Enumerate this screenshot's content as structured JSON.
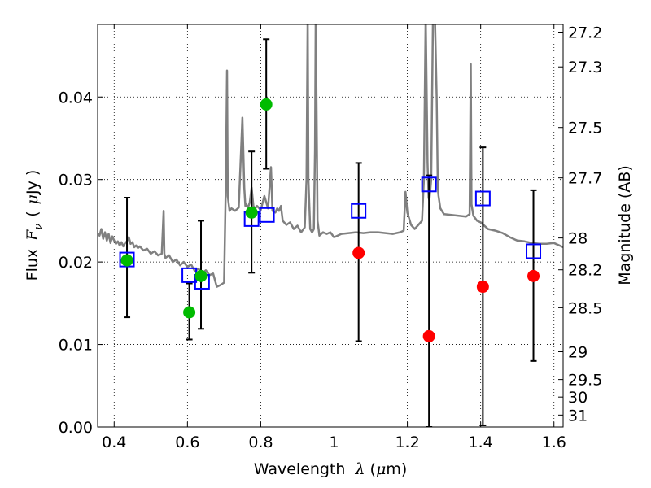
{
  "chart_data": {
    "type": "scatter",
    "xlabel_text": "Wavelength",
    "xlabel_symbol": "λ",
    "xlabel_unit_open": "(",
    "xlabel_unit_mu": "μ",
    "xlabel_unit_rest": "m)",
    "ylabel_text": "Flux",
    "ylabel_symbol": "F",
    "ylabel_sub": "ν",
    "ylabel_unit_open": "(",
    "ylabel_unit_mu": "μ",
    "ylabel_unit_rest": "Jy )",
    "y2label": "Magnitude (AB)",
    "xlim": [
      0.355,
      1.625
    ],
    "ylim": [
      0.0,
      0.0488
    ],
    "grid": true,
    "x_ticks": [
      0.4,
      0.6,
      0.8,
      1.0,
      1.2,
      1.4,
      1.6
    ],
    "x_tick_labels": [
      "0.4",
      "0.6",
      "0.8",
      "1",
      "1.2",
      "1.4",
      "1.6"
    ],
    "y_ticks": [
      0.0,
      0.01,
      0.02,
      0.03,
      0.04
    ],
    "y_tick_labels": [
      "0.00",
      "0.01",
      "0.02",
      "0.03",
      "0.04"
    ],
    "mag_ticks": [
      27.2,
      27.3,
      27.5,
      27.7,
      28,
      28.2,
      28.5,
      29,
      29.5,
      30,
      31
    ],
    "mag_tick_labels": [
      "27.2",
      "27.3",
      "27.5",
      "27.7",
      "28",
      "28.2",
      "28.5",
      "29",
      "29.5",
      "30",
      "31"
    ],
    "mag_zero_point": 23.9,
    "spectrum": {
      "color": "#808080",
      "x": [
        0.355,
        0.36,
        0.365,
        0.37,
        0.375,
        0.38,
        0.385,
        0.39,
        0.395,
        0.4,
        0.405,
        0.41,
        0.415,
        0.42,
        0.425,
        0.43,
        0.435,
        0.44,
        0.445,
        0.45,
        0.455,
        0.46,
        0.465,
        0.47,
        0.48,
        0.49,
        0.5,
        0.51,
        0.52,
        0.53,
        0.535,
        0.537,
        0.54,
        0.55,
        0.56,
        0.57,
        0.58,
        0.59,
        0.6,
        0.61,
        0.62,
        0.63,
        0.64,
        0.65,
        0.66,
        0.67,
        0.68,
        0.69,
        0.7,
        0.705,
        0.708,
        0.71,
        0.715,
        0.72,
        0.73,
        0.74,
        0.75,
        0.755,
        0.758,
        0.76,
        0.765,
        0.77,
        0.775,
        0.78,
        0.785,
        0.79,
        0.8,
        0.81,
        0.82,
        0.828,
        0.832,
        0.84,
        0.845,
        0.85,
        0.855,
        0.86,
        0.87,
        0.88,
        0.89,
        0.9,
        0.91,
        0.92,
        0.925,
        0.928,
        0.93,
        0.935,
        0.94,
        0.945,
        0.948,
        0.95,
        0.955,
        0.96,
        0.97,
        0.98,
        0.99,
        1.0,
        1.02,
        1.04,
        1.06,
        1.08,
        1.1,
        1.12,
        1.14,
        1.16,
        1.18,
        1.19,
        1.195,
        1.2,
        1.21,
        1.22,
        1.23,
        1.24,
        1.245,
        1.25,
        1.255,
        1.258,
        1.26,
        1.265,
        1.27,
        1.275,
        1.28,
        1.283,
        1.285,
        1.29,
        1.3,
        1.32,
        1.34,
        1.36,
        1.37,
        1.373,
        1.375,
        1.38,
        1.39,
        1.4,
        1.42,
        1.44,
        1.46,
        1.48,
        1.5,
        1.52,
        1.54,
        1.56,
        1.58,
        1.6,
        1.625
      ],
      "y": [
        0.0235,
        0.0232,
        0.024,
        0.0228,
        0.0236,
        0.0226,
        0.0234,
        0.0223,
        0.0231,
        0.0226,
        0.0222,
        0.0225,
        0.022,
        0.0224,
        0.0219,
        0.0223,
        0.0225,
        0.023,
        0.0222,
        0.0224,
        0.0218,
        0.022,
        0.0217,
        0.0219,
        0.0214,
        0.0216,
        0.021,
        0.0213,
        0.0208,
        0.021,
        0.0262,
        0.021,
        0.0205,
        0.0208,
        0.02,
        0.0203,
        0.0196,
        0.02,
        0.0194,
        0.0197,
        0.0189,
        0.0192,
        0.0186,
        0.019,
        0.0184,
        0.0186,
        0.017,
        0.0172,
        0.0175,
        0.03,
        0.0432,
        0.028,
        0.0262,
        0.0265,
        0.0262,
        0.0266,
        0.0375,
        0.029,
        0.0268,
        0.027,
        0.0266,
        0.0272,
        0.029,
        0.0268,
        0.0265,
        0.0268,
        0.0263,
        0.028,
        0.0265,
        0.0315,
        0.0262,
        0.026,
        0.0265,
        0.0262,
        0.0268,
        0.025,
        0.0245,
        0.0248,
        0.024,
        0.0244,
        0.0236,
        0.0242,
        0.03,
        0.05,
        0.03,
        0.024,
        0.0236,
        0.024,
        0.0335,
        0.05,
        0.025,
        0.0232,
        0.0236,
        0.0234,
        0.0236,
        0.023,
        0.0234,
        0.0235,
        0.0236,
        0.0235,
        0.0236,
        0.0236,
        0.0235,
        0.0234,
        0.0236,
        0.0238,
        0.0285,
        0.026,
        0.0245,
        0.024,
        0.0245,
        0.025,
        0.03,
        0.05,
        0.032,
        0.0278,
        0.0275,
        0.03,
        0.05,
        0.05,
        0.04,
        0.029,
        0.028,
        0.0265,
        0.0258,
        0.0257,
        0.0256,
        0.0255,
        0.0258,
        0.044,
        0.027,
        0.0256,
        0.025,
        0.0248,
        0.024,
        0.0238,
        0.0235,
        0.023,
        0.0226,
        0.0225,
        0.0223,
        0.0222,
        0.0222,
        0.0223,
        0.0218
      ]
    },
    "series": [
      {
        "name": "green_points",
        "marker": "circle",
        "color": "#00bb00",
        "x": [
          0.435,
          0.605,
          0.637,
          0.775,
          0.815
        ],
        "y": [
          0.0202,
          0.0139,
          0.0183,
          0.026,
          0.0391
        ],
        "err_low": [
          0.0133,
          0.0106,
          0.0119,
          0.0187,
          0.0313
        ],
        "err_high": [
          0.0278,
          0.0174,
          0.025,
          0.0334,
          0.047
        ]
      },
      {
        "name": "blue_squares",
        "marker": "square-open",
        "color": "#0000ff",
        "x": [
          0.435,
          0.605,
          0.64,
          0.775,
          0.817,
          1.067,
          1.259,
          1.406,
          1.544
        ],
        "y": [
          0.0203,
          0.0184,
          0.0176,
          0.0252,
          0.0257,
          0.0262,
          0.0294,
          0.0277,
          0.0213
        ]
      },
      {
        "name": "red_points",
        "marker": "circle",
        "color": "#ff0000",
        "x": [
          1.067,
          1.259,
          1.406,
          1.544
        ],
        "y": [
          0.0211,
          0.011,
          0.017,
          0.0183
        ],
        "err_low": [
          0.0104,
          0.0,
          0.0002,
          0.008
        ],
        "err_high": [
          0.032,
          0.0305,
          0.0339,
          0.0287
        ]
      }
    ]
  }
}
